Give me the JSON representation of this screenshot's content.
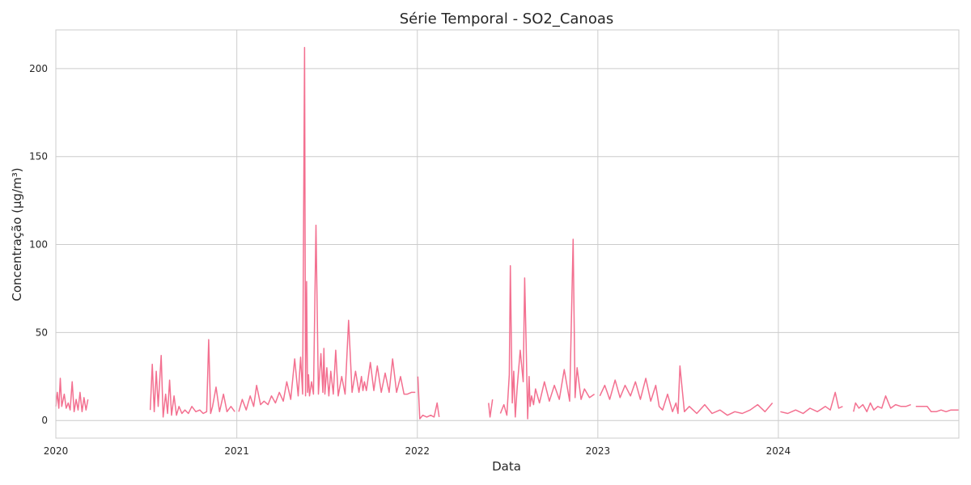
{
  "chart_data": {
    "type": "line",
    "title": "Série Temporal - SO2_Canoas",
    "xlabel": "Data",
    "ylabel": "Concentração (µg/m³)",
    "xlim": [
      "2020-01-01",
      "2024-12-31"
    ],
    "ylim": [
      -10,
      222
    ],
    "x_ticks": [
      "2020",
      "2021",
      "2022",
      "2023",
      "2024"
    ],
    "y_ticks": [
      0,
      50,
      100,
      150,
      200
    ],
    "grid": true,
    "legend": "none",
    "color": "#f37090",
    "series": [
      {
        "segments": [
          {
            "x": [
              "2020-01-01",
              "2020-01-04",
              "2020-01-07",
              "2020-01-10",
              "2020-01-13",
              "2020-01-18",
              "2020-01-22",
              "2020-01-26",
              "2020-01-30",
              "2020-02-03",
              "2020-02-07",
              "2020-02-11",
              "2020-02-15",
              "2020-02-19",
              "2020-02-23",
              "2020-02-27",
              "2020-03-02",
              "2020-03-06"
            ],
            "y": [
              8,
              16,
              7,
              24,
              8,
              15,
              7,
              10,
              6,
              22,
              5,
              12,
              6,
              16,
              5,
              13,
              6,
              12
            ]
          },
          {
            "x": [
              "2020-07-10",
              "2020-07-14",
              "2020-07-18",
              "2020-07-22",
              "2020-07-26",
              "2020-08-01",
              "2020-08-05",
              "2020-08-10",
              "2020-08-14",
              "2020-08-18",
              "2020-08-22",
              "2020-08-27",
              "2020-09-01",
              "2020-09-06",
              "2020-09-12",
              "2020-09-18",
              "2020-09-25",
              "2020-10-02",
              "2020-10-10",
              "2020-10-18",
              "2020-10-25",
              "2020-11-01",
              "2020-11-05",
              "2020-11-09",
              "2020-11-13",
              "2020-11-20",
              "2020-11-27",
              "2020-12-05",
              "2020-12-12",
              "2020-12-20",
              "2020-12-28"
            ],
            "y": [
              6,
              32,
              5,
              28,
              8,
              37,
              2,
              15,
              4,
              23,
              3,
              14,
              3,
              8,
              4,
              6,
              4,
              8,
              5,
              6,
              4,
              5,
              46,
              4,
              8,
              19,
              5,
              15,
              5,
              8,
              5
            ]
          },
          {
            "x": [
              "2021-01-05",
              "2021-01-12",
              "2021-01-20",
              "2021-01-28",
              "2021-02-04",
              "2021-02-10",
              "2021-02-18",
              "2021-02-25",
              "2021-03-05",
              "2021-03-12",
              "2021-03-20",
              "2021-03-28",
              "2021-04-05",
              "2021-04-12",
              "2021-04-20",
              "2021-04-28",
              "2021-05-05",
              "2021-05-10",
              "2021-05-14",
              "2021-05-18",
              "2021-05-20",
              "2021-05-22",
              "2021-05-24",
              "2021-05-26",
              "2021-05-28",
              "2021-06-01",
              "2021-06-05",
              "2021-06-10",
              "2021-06-15",
              "2021-06-20",
              "2021-06-24",
              "2021-06-26",
              "2021-06-28",
              "2021-07-02",
              "2021-07-06",
              "2021-07-10",
              "2021-07-15",
              "2021-07-20",
              "2021-07-25",
              "2021-08-01",
              "2021-08-08",
              "2021-08-15",
              "2021-08-22",
              "2021-08-29",
              "2021-09-05",
              "2021-09-10",
              "2021-09-13",
              "2021-09-16",
              "2021-09-20",
              "2021-09-28",
              "2021-10-05",
              "2021-10-12",
              "2021-10-20",
              "2021-10-28",
              "2021-11-05",
              "2021-11-12",
              "2021-11-20",
              "2021-11-28",
              "2021-12-05",
              "2021-12-12",
              "2021-12-20",
              "2021-12-28"
            ],
            "y": [
              5,
              12,
              6,
              14,
              8,
              20,
              9,
              11,
              9,
              14,
              10,
              16,
              11,
              22,
              12,
              35,
              14,
              36,
              15,
              212,
              14,
              79,
              16,
              26,
              14,
              22,
              15,
              111,
              15,
              38,
              16,
              41,
              15,
              30,
              14,
              28,
              15,
              40,
              14,
              25,
              15,
              57,
              16,
              28,
              16,
              25,
              17,
              22,
              17,
              33,
              17,
              31,
              16,
              27,
              16,
              35,
              16,
              25,
              15,
              15,
              16,
              16
            ]
          },
          {
            "x": [
              "2022-01-02",
              "2022-01-06",
              "2022-01-12",
              "2022-01-20",
              "2022-01-28",
              "2022-02-04",
              "2022-02-10",
              "2022-02-14"
            ],
            "y": [
              25,
              1,
              3,
              2,
              3,
              2,
              10,
              2
            ]
          },
          {
            "x": [
              "2022-05-25",
              "2022-05-28",
              "2022-06-02"
            ],
            "y": [
              10,
              2,
              12
            ]
          },
          {
            "x": [
              "2022-06-18",
              "2022-06-25",
              "2022-07-01",
              "2022-07-06",
              "2022-07-08",
              "2022-07-10",
              "2022-07-12",
              "2022-07-15",
              "2022-07-18",
              "2022-07-22",
              "2022-07-28",
              "2022-08-03",
              "2022-08-06",
              "2022-08-09",
              "2022-08-12",
              "2022-08-15",
              "2022-08-17",
              "2022-08-20",
              "2022-08-24",
              "2022-08-28",
              "2022-09-05",
              "2022-09-15",
              "2022-09-25",
              "2022-10-05",
              "2022-10-15",
              "2022-10-25",
              "2022-11-05",
              "2022-11-12",
              "2022-11-16",
              "2022-11-20",
              "2022-11-28",
              "2022-12-05",
              "2022-12-15",
              "2022-12-25"
            ],
            "y": [
              4,
              9,
              3,
              26,
              88,
              47,
              10,
              28,
              2,
              19,
              40,
              22,
              81,
              44,
              1,
              25,
              8,
              14,
              9,
              18,
              10,
              22,
              11,
              20,
              12,
              29,
              11,
              103,
              13,
              30,
              12,
              18,
              13,
              15
            ]
          },
          {
            "x": [
              "2023-01-05",
              "2023-01-15",
              "2023-01-25",
              "2023-02-05",
              "2023-02-15",
              "2023-02-25",
              "2023-03-08",
              "2023-03-18",
              "2023-03-28",
              "2023-04-08",
              "2023-04-18",
              "2023-04-28",
              "2023-05-05",
              "2023-05-12",
              "2023-05-22",
              "2023-06-01",
              "2023-06-08",
              "2023-06-12",
              "2023-06-16",
              "2023-06-25",
              "2023-07-05",
              "2023-07-20",
              "2023-08-05",
              "2023-08-20",
              "2023-09-05",
              "2023-09-20",
              "2023-10-05",
              "2023-10-20",
              "2023-11-05",
              "2023-11-20",
              "2023-12-05",
              "2023-12-20"
            ],
            "y": [
              14,
              20,
              12,
              23,
              13,
              20,
              14,
              22,
              12,
              24,
              11,
              20,
              8,
              6,
              15,
              5,
              10,
              4,
              31,
              5,
              8,
              4,
              9,
              4,
              6,
              3,
              5,
              4,
              6,
              9,
              5,
              10
            ]
          },
          {
            "x": [
              "2024-01-05",
              "2024-01-20",
              "2024-02-05",
              "2024-02-20",
              "2024-03-05",
              "2024-03-20",
              "2024-04-05",
              "2024-04-15",
              "2024-04-25",
              "2024-05-02",
              "2024-05-10"
            ],
            "y": [
              5,
              4,
              6,
              4,
              7,
              5,
              8,
              6,
              16,
              7,
              8
            ]
          },
          {
            "x": [
              "2024-06-01",
              "2024-06-05",
              "2024-06-12",
              "2024-06-20",
              "2024-06-28",
              "2024-07-05",
              "2024-07-12",
              "2024-07-20",
              "2024-07-28",
              "2024-08-05",
              "2024-08-15",
              "2024-08-25",
              "2024-09-05",
              "2024-09-15",
              "2024-09-25"
            ],
            "y": [
              5,
              10,
              7,
              9,
              5,
              10,
              6,
              8,
              7,
              14,
              7,
              9,
              8,
              8,
              9
            ]
          },
          {
            "x": [
              "2024-10-05",
              "2024-10-12",
              "2024-10-20",
              "2024-10-28",
              "2024-11-05",
              "2024-11-15",
              "2024-11-25",
              "2024-12-05",
              "2024-12-15",
              "2024-12-25",
              "2024-12-31"
            ],
            "y": [
              8,
              8,
              8,
              8,
              5,
              5,
              6,
              5,
              6,
              6,
              6
            ]
          }
        ]
      }
    ]
  }
}
